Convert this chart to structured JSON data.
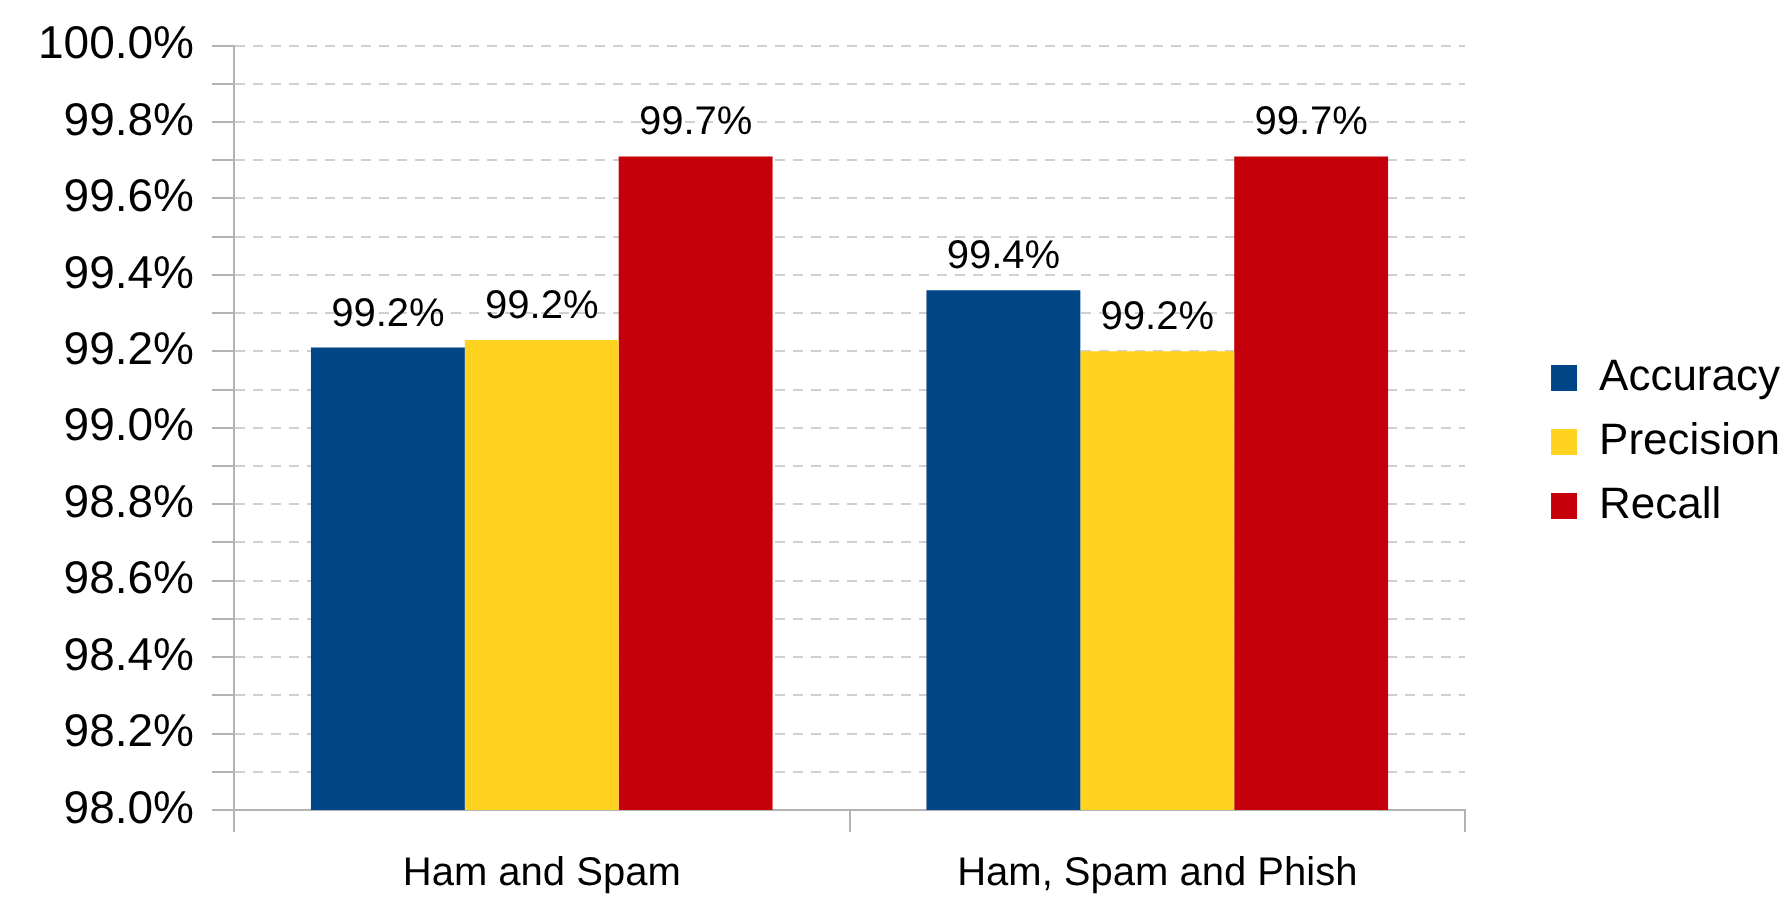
{
  "chart_data": {
    "type": "bar",
    "categories": [
      "Ham and Spam",
      "Ham, Spam and Phish"
    ],
    "series": [
      {
        "name": "Accuracy",
        "color": "#004586",
        "values": [
          99.21,
          99.36
        ],
        "value_labels": [
          "99.2%",
          "99.4%"
        ]
      },
      {
        "name": "Precision",
        "color": "#ffd320",
        "values": [
          99.23,
          99.2
        ],
        "value_labels": [
          "99.2%",
          "99.2%"
        ]
      },
      {
        "name": "Recall",
        "color": "#c5000b",
        "values": [
          99.71,
          99.71
        ],
        "value_labels": [
          "99.7%",
          "99.7%"
        ]
      }
    ],
    "ylim": [
      98,
      100
    ],
    "yticks": [
      {
        "value": 98,
        "label": "98.0%"
      },
      {
        "value": 98.1,
        "label": null
      },
      {
        "value": 98.2,
        "label": "98.2%"
      },
      {
        "value": 98.3,
        "label": null
      },
      {
        "value": 98.4,
        "label": "98.4%"
      },
      {
        "value": 98.5,
        "label": null
      },
      {
        "value": 98.6,
        "label": "98.6%"
      },
      {
        "value": 98.7,
        "label": null
      },
      {
        "value": 98.8,
        "label": "98.8%"
      },
      {
        "value": 98.9,
        "label": null
      },
      {
        "value": 99,
        "label": "99.0%"
      },
      {
        "value": 99.1,
        "label": null
      },
      {
        "value": 99.2,
        "label": "99.2%"
      },
      {
        "value": 99.3,
        "label": null
      },
      {
        "value": 99.4,
        "label": "99.4%"
      },
      {
        "value": 99.5,
        "label": null
      },
      {
        "value": 99.6,
        "label": "99.6%"
      },
      {
        "value": 99.7,
        "label": null
      },
      {
        "value": 99.8,
        "label": "99.8%"
      },
      {
        "value": 99.9,
        "label": null
      },
      {
        "value": 100,
        "label": "100.0%"
      }
    ],
    "grid": "y",
    "legend": "right"
  }
}
